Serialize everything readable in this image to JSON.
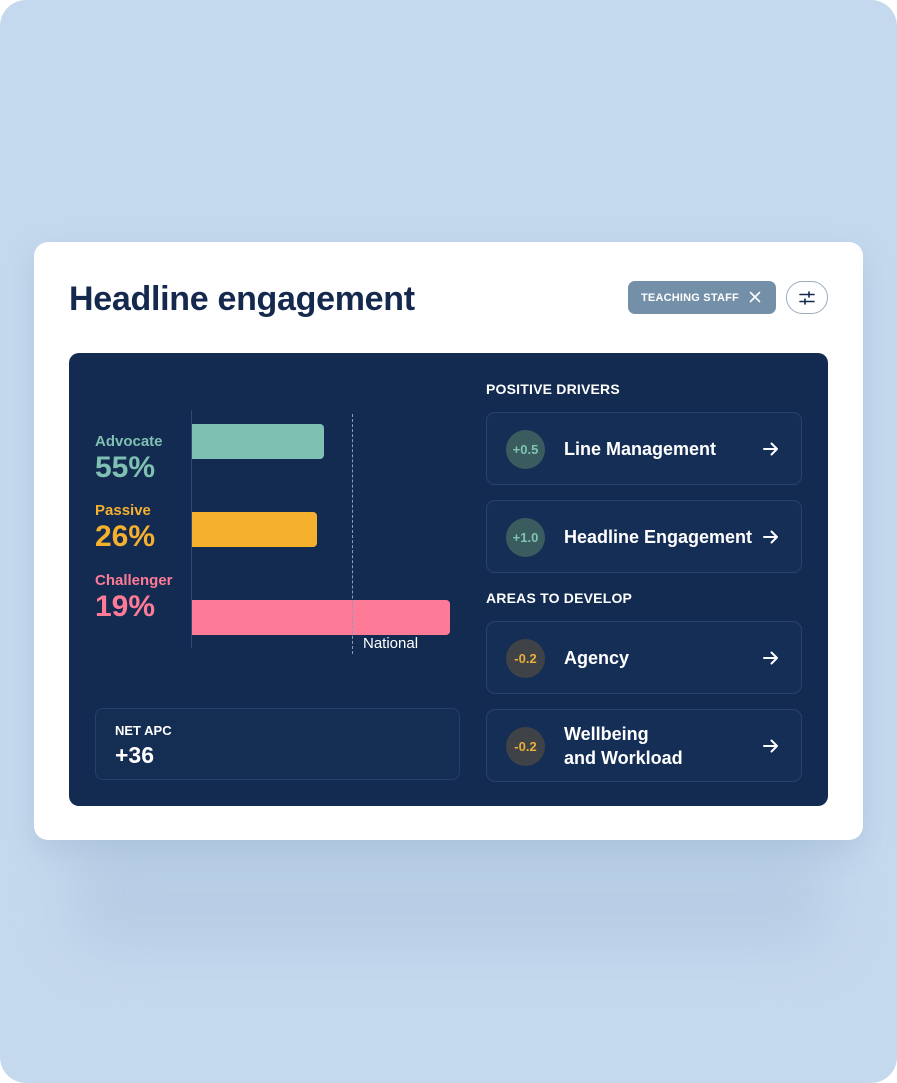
{
  "card": {
    "title": "Headline engagement",
    "filter_chip": {
      "label": "TEACHING STAFF",
      "icon": "close-icon"
    },
    "filter_button_icon": "sliders-icon"
  },
  "chart_data": {
    "type": "bar",
    "orientation": "horizontal",
    "categories": [
      "Advocate",
      "Passive",
      "Challenger"
    ],
    "values": [
      55,
      26,
      19
    ],
    "value_labels": [
      "55%",
      "26%",
      "19%"
    ],
    "colors": [
      "#7ec0b1",
      "#f5b02e",
      "#fe7b97"
    ],
    "reference_line": {
      "label": "National"
    }
  },
  "bar_fill": [
    0.59,
    0.56,
    1.15
  ],
  "net_apc": {
    "label": "NET APC",
    "value": "+36"
  },
  "positive_drivers": {
    "heading": "POSITIVE DRIVERS",
    "items": [
      {
        "score": "+0.5",
        "label": "Line Management"
      },
      {
        "score": "+1.0",
        "label": "Headline Engagement"
      }
    ]
  },
  "areas_to_develop": {
    "heading": "AREAS TO DEVELOP",
    "items": [
      {
        "score": "-0.2",
        "label": "Agency"
      },
      {
        "score": "-0.2",
        "label_line1": "Wellbeing",
        "label_line2": "and Workload"
      }
    ]
  },
  "colors": {
    "background": "#c5d9ee",
    "panel": "#132b50",
    "title": "#14294d",
    "chip": "#7390a8",
    "positive_score": "#7ec4b0",
    "negative_score": "#e8ae3a"
  }
}
